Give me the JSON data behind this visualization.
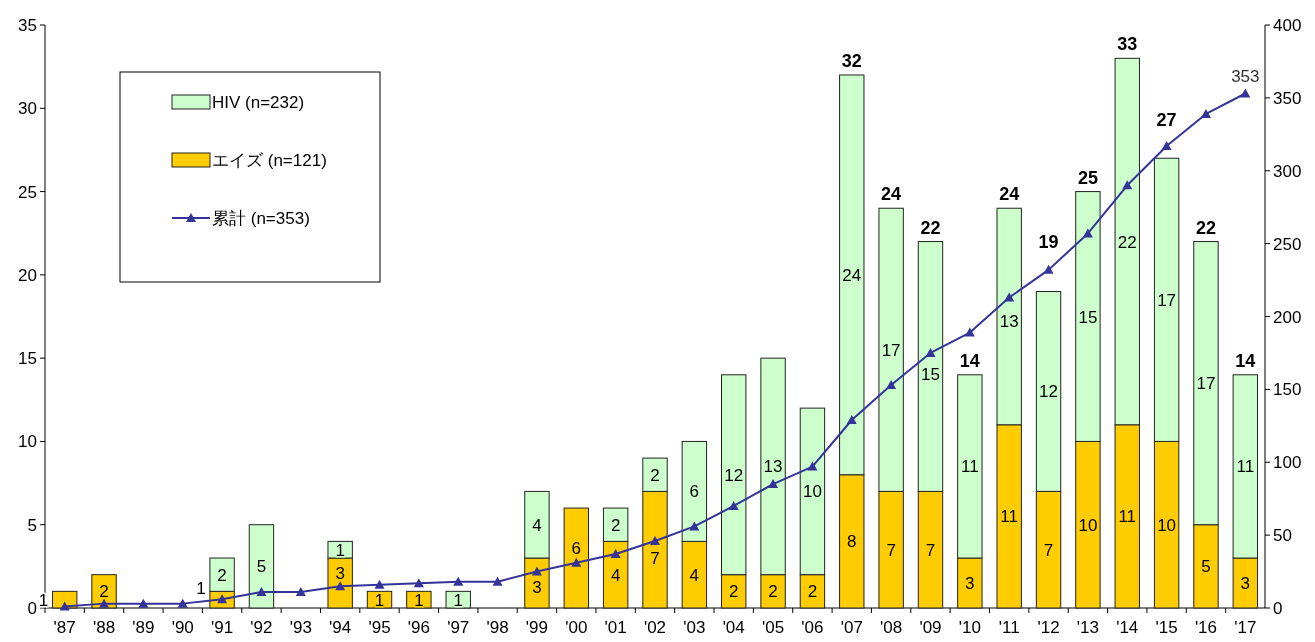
{
  "chart_data": {
    "type": "bar",
    "stacked": true,
    "categories": [
      "'87",
      "'88",
      "'89",
      "'90",
      "'91",
      "'92",
      "'93",
      "'94",
      "'95",
      "'96",
      "'97",
      "'98",
      "'99",
      "'00",
      "'01",
      "'02",
      "'03",
      "'04",
      "'05",
      "'06",
      "'07",
      "'08",
      "'09",
      "'10",
      "'11",
      "'12",
      "'13",
      "'14",
      "'15",
      "'16",
      "'17"
    ],
    "series": [
      {
        "name": "エイズ (n=121)",
        "color": "#ffcc00",
        "values": [
          1,
          2,
          0,
          0,
          1,
          0,
          0,
          3,
          1,
          1,
          0,
          0,
          3,
          6,
          4,
          7,
          4,
          2,
          2,
          2,
          8,
          7,
          7,
          3,
          11,
          7,
          10,
          11,
          10,
          5,
          3
        ],
        "value_labels": [
          "1",
          "2",
          null,
          null,
          "1",
          null,
          null,
          "3",
          "1",
          "1",
          null,
          null,
          "3",
          "6",
          "4",
          "7",
          "4",
          "2",
          "2",
          "2",
          "8",
          "7",
          "7",
          "3",
          "11",
          "7",
          "10",
          "11",
          "10",
          "5",
          "3"
        ]
      },
      {
        "name": "HIV (n=232)",
        "color": "#ccffcc",
        "values": [
          0,
          0,
          0,
          0,
          2,
          5,
          0,
          1,
          0,
          0,
          1,
          0,
          4,
          0,
          2,
          2,
          6,
          12,
          13,
          10,
          24,
          17,
          15,
          11,
          13,
          12,
          15,
          22,
          17,
          17,
          11
        ],
        "value_labels": [
          null,
          null,
          null,
          null,
          "2",
          "5",
          null,
          "1",
          null,
          null,
          "1",
          null,
          "4",
          null,
          "2",
          "2",
          "6",
          "12",
          "13",
          "10",
          "24",
          "17",
          "15",
          "11",
          "13",
          "12",
          "15",
          "22",
          "17",
          "17",
          "11"
        ]
      },
      {
        "name": "累計 (n=353)",
        "type": "line",
        "axis": "y2",
        "color": "#333399",
        "values": [
          1,
          3,
          3,
          3,
          6,
          11,
          11,
          15,
          16,
          17,
          18,
          18,
          25,
          31,
          37,
          46,
          56,
          70,
          85,
          97,
          129,
          153,
          175,
          189,
          213,
          232,
          257,
          290,
          317,
          339,
          353
        ],
        "value_labels": [
          null,
          null,
          null,
          null,
          null,
          null,
          null,
          null,
          null,
          null,
          null,
          null,
          null,
          null,
          null,
          null,
          null,
          null,
          null,
          null,
          null,
          null,
          null,
          null,
          null,
          null,
          null,
          null,
          null,
          null,
          "353"
        ]
      }
    ],
    "totals": [
      null,
      null,
      null,
      null,
      null,
      null,
      null,
      null,
      null,
      null,
      null,
      null,
      null,
      null,
      null,
      null,
      null,
      null,
      null,
      null,
      "32",
      "24",
      "22",
      "14",
      "24",
      "19",
      "25",
      "33",
      "27",
      "22",
      "14"
    ],
    "marker": "triangle",
    "ylim": [
      0,
      35
    ],
    "yticks": [
      0,
      5,
      10,
      15,
      20,
      25,
      30,
      35
    ],
    "y2lim": [
      0,
      400
    ],
    "y2ticks": [
      0,
      50,
      100,
      150,
      200,
      250,
      300,
      350,
      400
    ],
    "legend": "top left"
  }
}
